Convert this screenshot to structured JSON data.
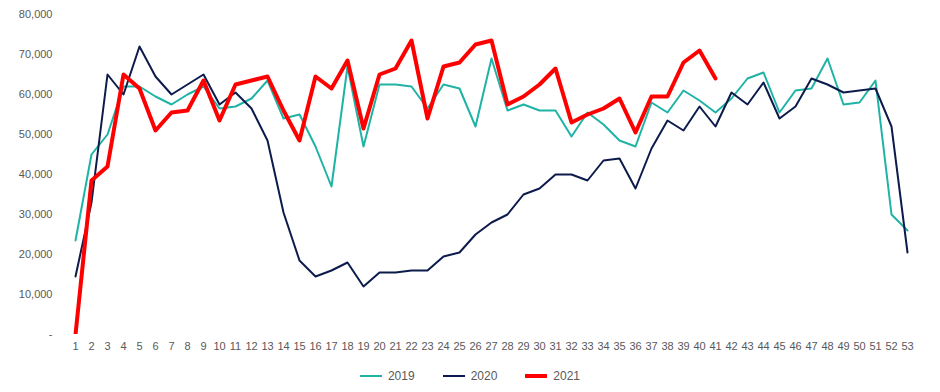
{
  "chart_data": {
    "type": "line",
    "categories": [
      "1",
      "2",
      "3",
      "4",
      "5",
      "6",
      "7",
      "8",
      "9",
      "10",
      "11",
      "12",
      "13",
      "14",
      "15",
      "16",
      "17",
      "18",
      "19",
      "20",
      "21",
      "22",
      "23",
      "24",
      "25",
      "26",
      "27",
      "28",
      "29",
      "30",
      "31",
      "32",
      "33",
      "34",
      "35",
      "36",
      "37",
      "38",
      "39",
      "40",
      "41",
      "42",
      "43",
      "44",
      "45",
      "46",
      "47",
      "48",
      "49",
      "50",
      "51",
      "52",
      "53"
    ],
    "series": [
      {
        "name": "2019",
        "color": "#1fb3a6",
        "values": [
          23500,
          45000,
          50000,
          62000,
          62000,
          59500,
          57500,
          60000,
          62000,
          56500,
          57000,
          59000,
          63500,
          54000,
          55000,
          47000,
          37000,
          67000,
          47000,
          62500,
          62500,
          62000,
          56500,
          62500,
          61500,
          52000,
          69000,
          56000,
          57500,
          56000,
          56000,
          49500,
          55500,
          52500,
          48500,
          47000,
          58000,
          55500,
          61000,
          58500,
          55500,
          59000,
          64000,
          65500,
          55500,
          61000,
          61500,
          69000,
          57500,
          58000,
          63500,
          30000,
          26000
        ]
      },
      {
        "name": "2020",
        "color": "#0d1b4c",
        "values": [
          14500,
          33000,
          65000,
          60000,
          72000,
          64500,
          60000,
          62500,
          65000,
          57500,
          60500,
          56500,
          48500,
          30500,
          18500,
          14500,
          16000,
          18000,
          12000,
          15500,
          15500,
          16000,
          16000,
          19500,
          20500,
          25000,
          28000,
          30000,
          35000,
          36500,
          40000,
          40000,
          38500,
          43500,
          44000,
          36500,
          46500,
          53500,
          51000,
          57000,
          52000,
          60500,
          57500,
          63000,
          54000,
          57000,
          64000,
          62500,
          60500,
          61000,
          61500,
          52000,
          20500
        ]
      },
      {
        "name": "2021",
        "color": "#ff0000",
        "values": [
          0,
          38500,
          42000,
          65000,
          61500,
          51000,
          55500,
          56000,
          63500,
          53500,
          62500,
          63500,
          64500,
          56000,
          48500,
          64500,
          61500,
          68500,
          51500,
          65000,
          66500,
          73500,
          54000,
          67000,
          68000,
          72500,
          73500,
          57500,
          59500,
          62500,
          66500,
          53000,
          55000,
          56500,
          59000,
          50500,
          59500,
          59500,
          68000,
          71000,
          64000,
          null,
          null,
          null,
          null,
          null,
          null,
          null,
          null,
          null,
          null,
          null,
          null
        ]
      }
    ],
    "ylim": [
      0,
      80000
    ],
    "yticks": [
      {
        "value": 0,
        "label": "-"
      },
      {
        "value": 10000,
        "label": "10,000"
      },
      {
        "value": 20000,
        "label": "20,000"
      },
      {
        "value": 30000,
        "label": "30,000"
      },
      {
        "value": 40000,
        "label": "40,000"
      },
      {
        "value": 50000,
        "label": "50,000"
      },
      {
        "value": 60000,
        "label": "60,000"
      },
      {
        "value": 70000,
        "label": "70,000"
      },
      {
        "value": 80000,
        "label": "80,000"
      }
    ],
    "grid": false,
    "legend": "bottom"
  }
}
